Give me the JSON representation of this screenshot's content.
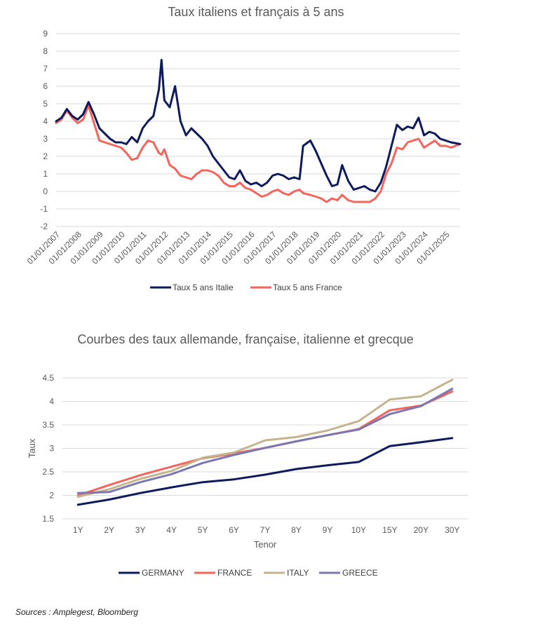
{
  "chart_data": [
    {
      "type": "line",
      "title": "Taux italiens et français à 5 ans",
      "xlabel": "",
      "ylabel": "",
      "ylim": [
        -2,
        9
      ],
      "yticks": [
        "-2",
        "-1",
        "0",
        "1",
        "2",
        "3",
        "4",
        "5",
        "6",
        "7",
        "8",
        "9"
      ],
      "xlim": [
        "2007-01-01",
        "2025-09-01"
      ],
      "xticks": [
        "01/01/2007",
        "01/01/2008",
        "01/01/2009",
        "01/01/2010",
        "01/01/2011",
        "01/01/2012",
        "01/01/2013",
        "01/01/2014",
        "01/01/2015",
        "01/01/2016",
        "01/01/2017",
        "01/01/2018",
        "01/01/2019",
        "01/01/2020",
        "01/01/2021",
        "01/01/2022",
        "01/01/2023",
        "01/01/2024",
        "01/01/2025"
      ],
      "grid": true,
      "legend_position": "bottom",
      "colors": {
        "italy": "#0d1a5c",
        "france": "#f4645a"
      },
      "series": [
        {
          "name": "Taux 5 ans Italie",
          "x": [
            "2007-01-01",
            "2007-04-01",
            "2007-07-01",
            "2007-10-01",
            "2008-01-01",
            "2008-04-01",
            "2008-07-01",
            "2008-10-01",
            "2009-01-01",
            "2009-04-01",
            "2009-07-01",
            "2009-10-01",
            "2010-01-01",
            "2010-04-01",
            "2010-07-01",
            "2010-10-01",
            "2011-01-01",
            "2011-04-01",
            "2011-07-01",
            "2011-10-01",
            "2011-11-15",
            "2012-01-01",
            "2012-04-01",
            "2012-07-01",
            "2012-10-01",
            "2013-01-01",
            "2013-04-01",
            "2013-07-01",
            "2013-10-01",
            "2014-01-01",
            "2014-04-01",
            "2014-07-01",
            "2014-10-01",
            "2015-01-01",
            "2015-04-01",
            "2015-07-01",
            "2015-10-01",
            "2016-01-01",
            "2016-04-01",
            "2016-07-01",
            "2016-10-01",
            "2017-01-01",
            "2017-04-01",
            "2017-07-01",
            "2017-10-01",
            "2018-01-01",
            "2018-04-01",
            "2018-06-01",
            "2018-10-01",
            "2019-01-01",
            "2019-04-01",
            "2019-07-01",
            "2019-10-01",
            "2020-01-01",
            "2020-03-20",
            "2020-07-01",
            "2020-10-01",
            "2021-01-01",
            "2021-04-01",
            "2021-07-01",
            "2021-10-01",
            "2022-01-01",
            "2022-04-01",
            "2022-07-01",
            "2022-10-01",
            "2023-01-01",
            "2023-04-01",
            "2023-07-01",
            "2023-10-01",
            "2024-01-01",
            "2024-04-01",
            "2024-07-01",
            "2024-10-01",
            "2025-01-01",
            "2025-04-01",
            "2025-09-01"
          ],
          "values": [
            4.0,
            4.2,
            4.7,
            4.3,
            4.1,
            4.4,
            5.1,
            4.4,
            3.6,
            3.3,
            3.0,
            2.8,
            2.8,
            2.7,
            3.1,
            2.8,
            3.6,
            4.0,
            4.3,
            5.8,
            7.5,
            5.2,
            4.8,
            6.0,
            4.0,
            3.2,
            3.6,
            3.3,
            3.0,
            2.6,
            2.0,
            1.6,
            1.2,
            0.8,
            0.7,
            1.2,
            0.6,
            0.4,
            0.5,
            0.3,
            0.5,
            0.9,
            1.0,
            0.9,
            0.7,
            0.8,
            0.7,
            2.6,
            2.9,
            2.3,
            1.6,
            0.9,
            0.3,
            0.4,
            1.5,
            0.6,
            0.1,
            0.2,
            0.3,
            0.1,
            0.0,
            0.5,
            1.4,
            2.6,
            3.8,
            3.5,
            3.7,
            3.6,
            4.2,
            3.2,
            3.4,
            3.3,
            3.0,
            2.9,
            2.8,
            2.7
          ]
        },
        {
          "name": "Taux 5 ans France",
          "x": [
            "2007-01-01",
            "2007-04-01",
            "2007-07-01",
            "2007-10-01",
            "2008-01-01",
            "2008-04-01",
            "2008-07-01",
            "2008-10-01",
            "2009-01-01",
            "2009-04-01",
            "2009-07-01",
            "2009-10-01",
            "2010-01-01",
            "2010-04-01",
            "2010-07-01",
            "2010-10-01",
            "2011-01-01",
            "2011-04-01",
            "2011-07-01",
            "2011-10-01",
            "2011-11-15",
            "2012-01-01",
            "2012-04-01",
            "2012-07-01",
            "2012-10-01",
            "2013-01-01",
            "2013-04-01",
            "2013-07-01",
            "2013-10-01",
            "2014-01-01",
            "2014-04-01",
            "2014-07-01",
            "2014-10-01",
            "2015-01-01",
            "2015-04-01",
            "2015-07-01",
            "2015-10-01",
            "2016-01-01",
            "2016-04-01",
            "2016-07-01",
            "2016-10-01",
            "2017-01-01",
            "2017-04-01",
            "2017-07-01",
            "2017-10-01",
            "2018-01-01",
            "2018-04-01",
            "2018-06-01",
            "2018-10-01",
            "2019-01-01",
            "2019-04-01",
            "2019-07-01",
            "2019-10-01",
            "2020-01-01",
            "2020-03-20",
            "2020-07-01",
            "2020-10-01",
            "2021-01-01",
            "2021-04-01",
            "2021-07-01",
            "2021-10-01",
            "2022-01-01",
            "2022-04-01",
            "2022-07-01",
            "2022-10-01",
            "2023-01-01",
            "2023-04-01",
            "2023-07-01",
            "2023-10-01",
            "2024-01-01",
            "2024-04-01",
            "2024-07-01",
            "2024-10-01",
            "2025-01-01",
            "2025-04-01",
            "2025-09-01"
          ],
          "values": [
            3.9,
            4.1,
            4.6,
            4.2,
            3.9,
            4.1,
            4.9,
            3.9,
            2.9,
            2.8,
            2.7,
            2.6,
            2.5,
            2.2,
            1.8,
            1.9,
            2.5,
            2.9,
            2.8,
            2.2,
            2.1,
            2.4,
            1.5,
            1.3,
            0.9,
            0.8,
            0.7,
            1.0,
            1.2,
            1.2,
            1.1,
            0.9,
            0.5,
            0.3,
            0.3,
            0.5,
            0.2,
            0.1,
            -0.1,
            -0.3,
            -0.2,
            0.0,
            0.1,
            -0.1,
            -0.2,
            0.0,
            0.1,
            -0.1,
            -0.2,
            -0.3,
            -0.4,
            -0.6,
            -0.4,
            -0.5,
            -0.2,
            -0.5,
            -0.6,
            -0.6,
            -0.6,
            -0.6,
            -0.4,
            0.0,
            1.0,
            1.6,
            2.5,
            2.4,
            2.8,
            2.9,
            3.0,
            2.5,
            2.7,
            2.9,
            2.6,
            2.6,
            2.5,
            2.7
          ]
        }
      ]
    },
    {
      "type": "line",
      "title": "Courbes des taux allemande, française, italienne et grecque",
      "xlabel": "Tenor",
      "ylabel": "Taux",
      "ylim": [
        1.5,
        4.5
      ],
      "yticks": [
        "1.5",
        "2",
        "2.5",
        "3",
        "3.5",
        "4",
        "4.5"
      ],
      "grid": true,
      "legend_position": "bottom",
      "categories": [
        "1Y",
        "2Y",
        "3Y",
        "4Y",
        "5Y",
        "6Y",
        "7Y",
        "8Y",
        "9Y",
        "10Y",
        "15Y",
        "20Y",
        "30Y"
      ],
      "colors": {
        "germany": "#0d1a5c",
        "france": "#f4645a",
        "italy": "#c4b48e",
        "greece": "#7b77b3"
      },
      "series": [
        {
          "name": "GERMANY",
          "values": [
            1.8,
            1.91,
            2.05,
            2.17,
            2.28,
            2.34,
            2.44,
            2.56,
            2.64,
            2.71,
            3.05,
            3.13,
            3.22
          ]
        },
        {
          "name": "FRANCE",
          "values": [
            2.0,
            2.22,
            2.43,
            2.61,
            2.79,
            2.89,
            3.01,
            3.15,
            3.28,
            3.41,
            3.81,
            3.91,
            4.21
          ]
        },
        {
          "name": "ITALY",
          "values": [
            1.97,
            2.13,
            2.35,
            2.52,
            2.8,
            2.91,
            3.17,
            3.24,
            3.38,
            3.58,
            4.04,
            4.11,
            4.46
          ]
        },
        {
          "name": "GREECE",
          "values": [
            2.05,
            2.07,
            2.28,
            2.45,
            2.69,
            2.86,
            3.01,
            3.15,
            3.28,
            3.4,
            3.73,
            3.9,
            4.27
          ]
        }
      ]
    }
  ],
  "source": "Sources : Amplegest, Bloomberg"
}
